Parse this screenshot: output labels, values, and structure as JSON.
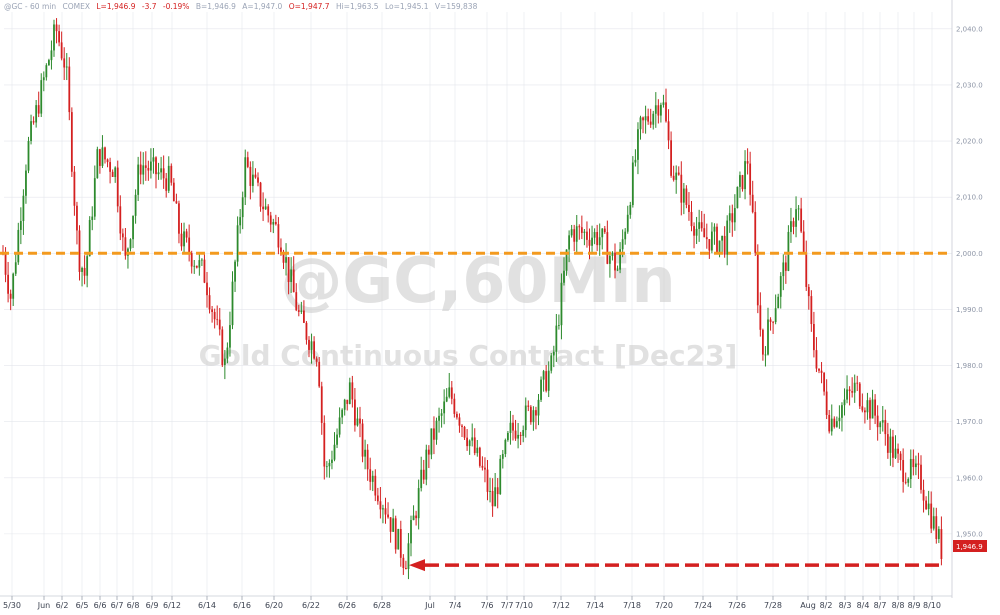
{
  "legend": {
    "symbol": "@GC - 60 min",
    "exchange": "COMEX",
    "last": "L=1,946.9",
    "change": "-3.7",
    "pct": "-0.19%",
    "bid": "B=1,946.9",
    "ask": "A=1,947.0",
    "open": "O=1,947.7",
    "high": "Hi=1,963.5",
    "low": "Lo=1,945.1",
    "volume": "V=159,838"
  },
  "watermark": {
    "line1": "@GC,60Min",
    "line2": "Gold Continuous Contract [Dec23]"
  },
  "last_price_label": "1,946.9",
  "colors": {
    "up": "#2d8a2d",
    "down": "#d42020",
    "level_line": "#f39a1e",
    "arrow": "#d42020",
    "label_bg": "#d42020",
    "grid": "#e4e6ec"
  },
  "chart_data": {
    "type": "candlestick",
    "title": "@GC,60Min",
    "subtitle": "Gold Continuous Contract [Dec23]",
    "ylim": [
      1940,
      2043
    ],
    "y_ticks": [
      "1,950.0",
      "1,960.0",
      "1,970.0",
      "1,980.0",
      "1,990.0",
      "2,000.0",
      "2,010.0",
      "2,020.0",
      "2,030.0",
      "2,040.0"
    ],
    "x_ticks": [
      "5/30",
      "Jun",
      "6/2",
      "6/5",
      "6/6",
      "6/7",
      "6/8",
      "6/9",
      "6/12",
      "6/14",
      "6/16",
      "6/20",
      "6/22",
      "6/26",
      "6/28",
      "Jul",
      "7/4",
      "7/6",
      "7/7",
      "7/10",
      "7/12",
      "7/14",
      "7/18",
      "7/20",
      "7/24",
      "7/26",
      "7/28",
      "Aug",
      "8/2",
      "8/3",
      "8/4",
      "8/7",
      "8/8",
      "8/9",
      "8/10"
    ],
    "price_path": [
      [
        "5/30",
        2000
      ],
      [
        "5/31",
        1992
      ],
      [
        "5/31b",
        2018
      ],
      [
        "Jun",
        2028
      ],
      [
        "6/2",
        2040
      ],
      [
        "6/2b",
        2033
      ],
      [
        "6/5",
        2000
      ],
      [
        "6/5b",
        1996
      ],
      [
        "6/6",
        2018
      ],
      [
        "6/7",
        2015
      ],
      [
        "6/8",
        1998
      ],
      [
        "6/9",
        2016
      ],
      [
        "6/12",
        2013
      ],
      [
        "6/12b",
        2003
      ],
      [
        "6/14",
        1996
      ],
      [
        "6/14b",
        1980
      ],
      [
        "6/16",
        2016
      ],
      [
        "6/16b",
        2009
      ],
      [
        "6/20",
        2003
      ],
      [
        "6/20b",
        1988
      ],
      [
        "6/22",
        1982
      ],
      [
        "6/22b",
        1960
      ],
      [
        "6/26",
        1976
      ],
      [
        "6/26b",
        1963
      ],
      [
        "6/28",
        1955
      ],
      [
        "6/28b",
        1945
      ],
      [
        "Jul",
        1965
      ],
      [
        "7/4",
        1975
      ],
      [
        "7/6",
        1960
      ],
      [
        "7/6b",
        1955
      ],
      [
        "7/7",
        1968
      ],
      [
        "7/10",
        1972
      ],
      [
        "7/12",
        1980
      ],
      [
        "7/12b",
        2004
      ],
      [
        "7/14",
        2003
      ],
      [
        "7/14b",
        1997
      ],
      [
        "7/18",
        2022
      ],
      [
        "7/20",
        2028
      ],
      [
        "7/20b",
        2015
      ],
      [
        "7/24",
        2003
      ],
      [
        "7/26",
        2002
      ],
      [
        "7/26b",
        2017
      ],
      [
        "7/28",
        1982
      ],
      [
        "Aug",
        1998
      ],
      [
        "8/2",
        2010
      ],
      [
        "8/2b",
        1985
      ],
      [
        "8/3",
        1970
      ],
      [
        "8/4",
        1976
      ],
      [
        "8/7",
        1970
      ],
      [
        "8/8",
        1962
      ],
      [
        "8/9",
        1960
      ],
      [
        "8/10",
        1946.9
      ]
    ],
    "horizontal_line": {
      "value": 2000,
      "style": "dashed"
    },
    "arrow_annotation": {
      "value": 1945.5,
      "direction": "left"
    },
    "last_price": 1946.9
  }
}
